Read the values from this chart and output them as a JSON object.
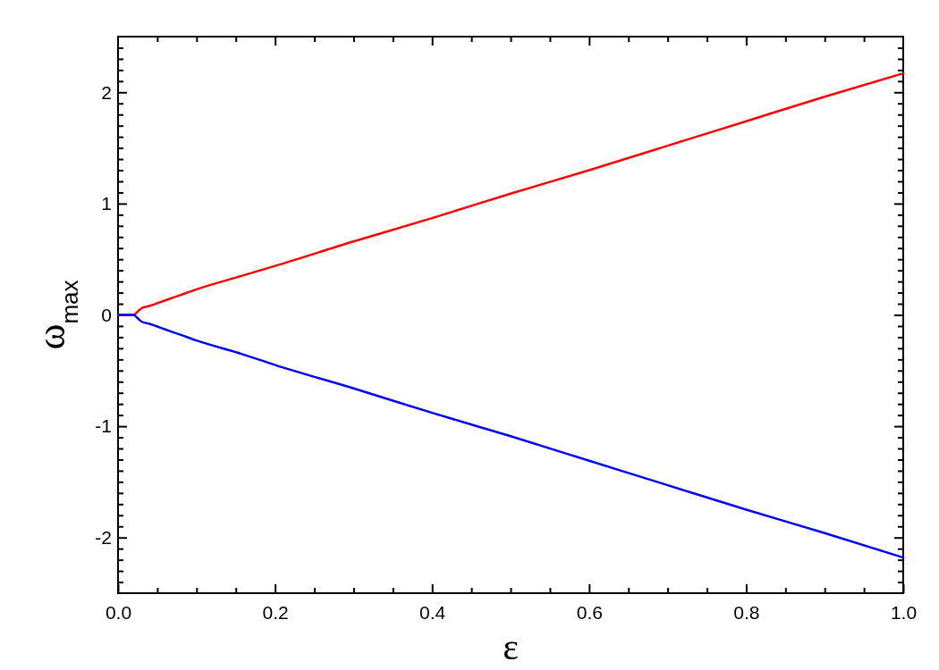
{
  "chart_data": {
    "type": "line",
    "xlabel": "ε",
    "ylabel": "ω$_{max}$",
    "x": [
      0,
      0.01,
      0.02,
      0.025,
      0.03,
      0.04,
      0.06,
      0.08,
      0.1,
      0.157,
      0.2,
      0.3,
      0.4,
      0.5,
      0.6,
      0.7,
      0.8,
      0.9,
      1.0
    ],
    "series": [
      {
        "color": "#ff0000",
        "values": [
          0,
          0,
          0,
          0.03,
          0.06,
          0.08,
          0.13,
          0.18,
          0.23,
          0.35,
          0.44,
          0.66,
          0.87,
          1.09,
          1.3,
          1.52,
          1.74,
          1.96,
          2.17
        ]
      },
      {
        "color": "#0000ff",
        "values": [
          0,
          0,
          0,
          -0.03,
          -0.06,
          -0.08,
          -0.13,
          -0.18,
          -0.23,
          -0.35,
          -0.45,
          -0.66,
          -0.88,
          -1.09,
          -1.31,
          -1.53,
          -1.75,
          -1.96,
          -2.18
        ]
      }
    ],
    "xlim": [
      0,
      1
    ],
    "ylim": [
      -2.5,
      2.5
    ],
    "xticks": [
      {
        "value": 0,
        "label": "0.0"
      },
      {
        "value": 0.05,
        "label": null
      },
      {
        "value": 0.1,
        "label": null
      },
      {
        "value": 0.15,
        "label": null
      },
      {
        "value": 0.2,
        "label": "0.2"
      },
      {
        "value": 0.25,
        "label": null
      },
      {
        "value": 0.3,
        "label": null
      },
      {
        "value": 0.35,
        "label": null
      },
      {
        "value": 0.4,
        "label": "0.4"
      },
      {
        "value": 0.45,
        "label": null
      },
      {
        "value": 0.5,
        "label": null
      },
      {
        "value": 0.55,
        "label": null
      },
      {
        "value": 0.6,
        "label": "0.6"
      },
      {
        "value": 0.65,
        "label": null
      },
      {
        "value": 0.7,
        "label": null
      },
      {
        "value": 0.75,
        "label": null
      },
      {
        "value": 0.8,
        "label": "0.8"
      },
      {
        "value": 0.85,
        "label": null
      },
      {
        "value": 0.9,
        "label": null
      },
      {
        "value": 0.95,
        "label": null
      },
      {
        "value": 1,
        "label": "1.0"
      }
    ],
    "yticks": [
      {
        "value": -2.4,
        "label": null
      },
      {
        "value": -2.3,
        "label": null
      },
      {
        "value": -2.2,
        "label": null
      },
      {
        "value": -2.1,
        "label": null
      },
      -2,
      {
        "value": -1.9,
        "label": null
      },
      {
        "value": -1.8,
        "label": null
      },
      {
        "value": -1.7,
        "label": null
      },
      {
        "value": -1.6,
        "label": null
      },
      {
        "value": -1.5,
        "label": null
      },
      {
        "value": -1.4,
        "label": null
      },
      {
        "value": -1.3,
        "label": null
      },
      {
        "value": -1.2,
        "label": null
      },
      {
        "value": -1.1,
        "label": null
      },
      -1,
      {
        "value": -0.9,
        "label": null
      },
      {
        "value": -0.8,
        "label": null
      },
      {
        "value": -0.7,
        "label": null
      },
      {
        "value": -0.6,
        "label": null
      },
      {
        "value": -0.5,
        "label": null
      },
      {
        "value": -0.4,
        "label": null
      },
      {
        "value": -0.3,
        "label": null
      },
      {
        "value": -0.2,
        "label": null
      },
      {
        "value": -0.1,
        "label": null
      },
      0,
      {
        "value": 0.1,
        "label": null
      },
      {
        "value": 0.2,
        "label": null
      },
      {
        "value": 0.3,
        "label": null
      },
      {
        "value": 0.4,
        "label": null
      },
      {
        "value": 0.5,
        "label": null
      },
      {
        "value": 0.6,
        "label": null
      },
      {
        "value": 0.7,
        "label": null
      },
      {
        "value": 0.8,
        "label": null
      },
      {
        "value": 0.9,
        "label": null
      },
      1,
      {
        "value": 1.1,
        "label": null
      },
      {
        "value": 1.2,
        "label": null
      },
      {
        "value": 1.3,
        "label": null
      },
      {
        "value": 1.4,
        "label": null
      },
      {
        "value": 1.5,
        "label": null
      },
      {
        "value": 1.6,
        "label": null
      },
      {
        "value": 1.7,
        "label": null
      },
      {
        "value": 1.8,
        "label": null
      },
      {
        "value": 1.9,
        "label": null
      },
      2,
      {
        "value": 2.1,
        "label": null
      },
      {
        "value": 2.2,
        "label": null
      },
      {
        "value": 2.3,
        "label": null
      },
      {
        "value": 2.4,
        "label": null
      }
    ]
  }
}
